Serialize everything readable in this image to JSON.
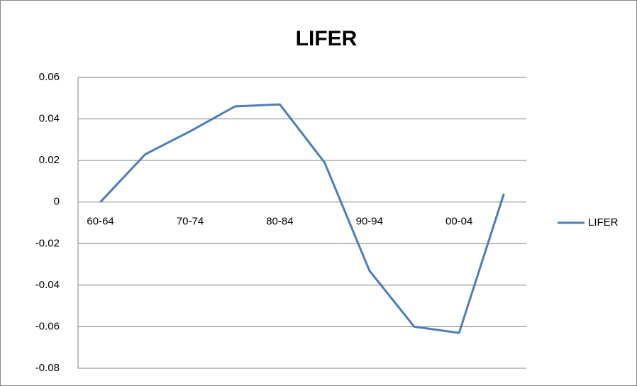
{
  "chart_data": {
    "type": "line",
    "title": "LIFER",
    "categories": [
      "60-64",
      null,
      "70-74",
      null,
      "80-84",
      null,
      "90-94",
      null,
      "00-04",
      null
    ],
    "series": [
      {
        "name": "LIFER",
        "color": "#4a7ebb",
        "values": [
          0,
          0.023,
          0.034,
          0.046,
          0.047,
          0.019,
          -0.033,
          -0.06,
          -0.063,
          0.004
        ]
      }
    ],
    "ylim": [
      -0.08,
      0.06
    ],
    "yticks": [
      0.06,
      0.04,
      0.02,
      0,
      -0.02,
      -0.04,
      -0.06,
      -0.08
    ],
    "grid": true,
    "legend": "right"
  }
}
